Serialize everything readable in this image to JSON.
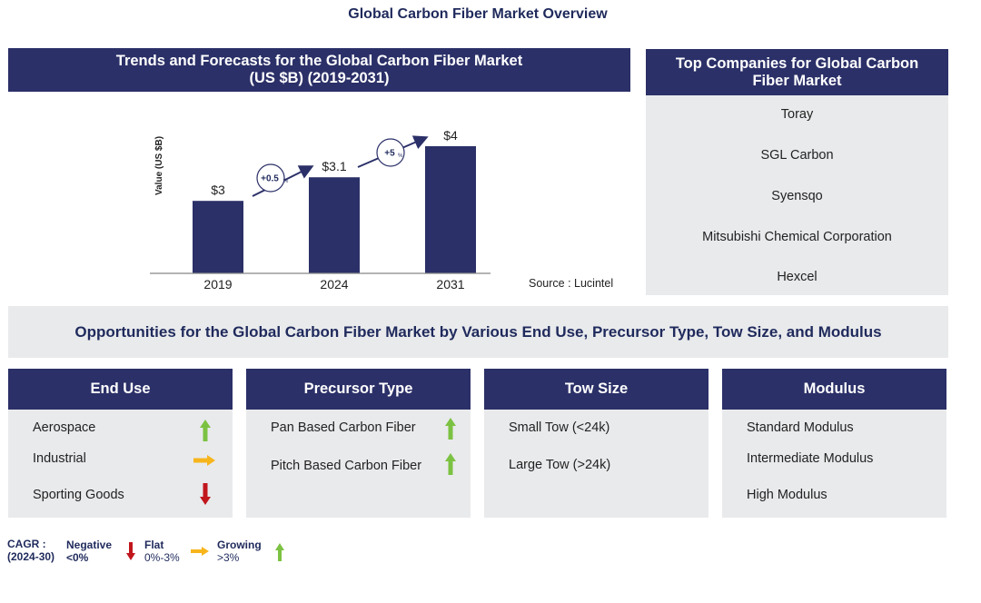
{
  "title": "Global Carbon Fiber Market Overview",
  "chart_panel": {
    "header": "Trends and Forecasts for the Global Carbon Fiber Market (US $B) (2019-2031)",
    "source": "Source : Lucintel"
  },
  "chart_data": {
    "type": "bar",
    "categories": [
      "2019",
      "2024",
      "2031"
    ],
    "values": [
      3,
      3.1,
      4
    ],
    "value_labels": [
      "$3",
      "$3.1",
      "$4"
    ],
    "ylabel": "Value (US $B)",
    "growth_annotations": [
      {
        "from": "2019",
        "to": "2024",
        "label": "+0.5",
        "unit": "%"
      },
      {
        "from": "2024",
        "to": "2031",
        "label": "+5",
        "unit": "%"
      }
    ],
    "colors": {
      "bar": "#2b3068"
    }
  },
  "companies": {
    "header": "Top Companies for Global Carbon Fiber Market",
    "items": [
      "Toray",
      "SGL Carbon",
      "Syensqo",
      "Mitsubishi Chemical Corporation",
      "Hexcel"
    ]
  },
  "opportunities_banner": "Opportunities for the Global Carbon Fiber Market by Various End Use, Precursor Type, Tow Size, and Modulus",
  "segments": [
    {
      "header": "End Use",
      "items": [
        {
          "label": "Aerospace",
          "trend": "growing"
        },
        {
          "label": "Industrial",
          "trend": "flat"
        },
        {
          "label": "Sporting  Goods",
          "trend": "negative"
        }
      ]
    },
    {
      "header": "Precursor Type",
      "items": [
        {
          "label": "Pan Based  Carbon Fiber",
          "trend": "growing"
        },
        {
          "label": "Pitch Based Carbon Fiber",
          "trend": "growing"
        }
      ]
    },
    {
      "header": "Tow Size",
      "items": [
        {
          "label": "Small Tow (<24k)",
          "trend": ""
        },
        {
          "label": "Large Tow (>24k)",
          "trend": ""
        }
      ]
    },
    {
      "header": "Modulus",
      "items": [
        {
          "label": "Standard Modulus",
          "trend": ""
        },
        {
          "label": "Intermediate  Modulus",
          "trend": ""
        },
        {
          "label": "High Modulus",
          "trend": ""
        }
      ]
    }
  ],
  "legend": {
    "cagr_label": "CAGR :",
    "period": "(2024-30)",
    "negative": {
      "label": "Negative",
      "range": "<0%"
    },
    "flat": {
      "label": "Flat",
      "range": "0%-3%"
    },
    "growing": {
      "label": "Growing",
      "range": ">3%"
    }
  },
  "colors": {
    "navy": "#2b3068",
    "panel_grey": "#e9eaec",
    "growing": "#7cc242",
    "flat": "#f7b51c",
    "negative": "#c0161c"
  }
}
